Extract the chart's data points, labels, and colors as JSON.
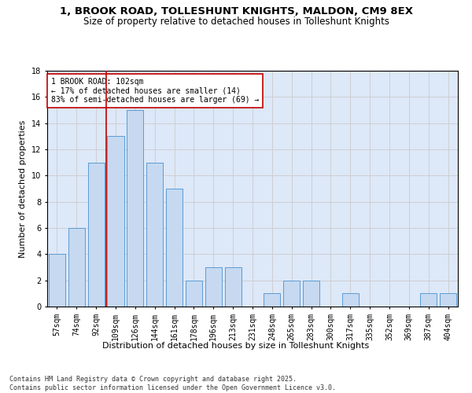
{
  "title": "1, BROOK ROAD, TOLLESHUNT KNIGHTS, MALDON, CM9 8EX",
  "subtitle": "Size of property relative to detached houses in Tolleshunt Knights",
  "xlabel": "Distribution of detached houses by size in Tolleshunt Knights",
  "ylabel": "Number of detached properties",
  "categories": [
    "57sqm",
    "74sqm",
    "92sqm",
    "109sqm",
    "126sqm",
    "144sqm",
    "161sqm",
    "178sqm",
    "196sqm",
    "213sqm",
    "231sqm",
    "248sqm",
    "265sqm",
    "283sqm",
    "300sqm",
    "317sqm",
    "335sqm",
    "352sqm",
    "369sqm",
    "387sqm",
    "404sqm"
  ],
  "values": [
    4,
    6,
    11,
    13,
    15,
    11,
    9,
    2,
    3,
    3,
    0,
    1,
    2,
    2,
    0,
    1,
    0,
    0,
    0,
    1,
    1
  ],
  "bar_color": "#c6d9f0",
  "bar_edge_color": "#5b9bd5",
  "grid_color": "#cccccc",
  "background_color": "#dde8f8",
  "vline_color": "#c00000",
  "annotation_text": "1 BROOK ROAD: 102sqm\n← 17% of detached houses are smaller (14)\n83% of semi-detached houses are larger (69) →",
  "annotation_box_color": "#ffffff",
  "annotation_box_edge": "#c00000",
  "ylim": [
    0,
    18
  ],
  "yticks": [
    0,
    2,
    4,
    6,
    8,
    10,
    12,
    14,
    16,
    18
  ],
  "footnote": "Contains HM Land Registry data © Crown copyright and database right 2025.\nContains public sector information licensed under the Open Government Licence v3.0.",
  "title_fontsize": 9.5,
  "subtitle_fontsize": 8.5,
  "xlabel_fontsize": 8,
  "ylabel_fontsize": 8,
  "tick_fontsize": 7,
  "annotation_fontsize": 7,
  "footnote_fontsize": 6
}
